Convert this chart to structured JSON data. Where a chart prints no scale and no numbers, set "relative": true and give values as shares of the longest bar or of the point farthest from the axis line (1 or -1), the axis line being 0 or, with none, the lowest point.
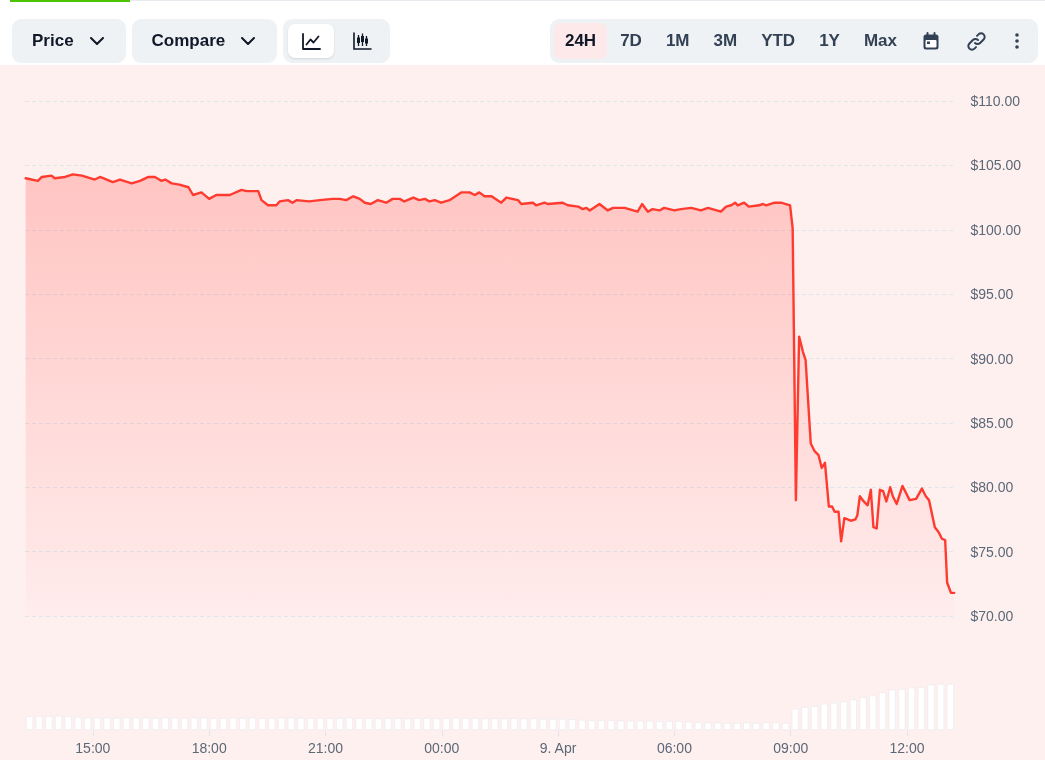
{
  "chart_data": [
    {
      "type": "area",
      "color": "#ff3b30",
      "line_style": "solid",
      "marker": "none",
      "grid": "y",
      "tick_labels": "y",
      "annotations": [
        "Price",
        "Compare",
        "24H",
        "7D",
        "1M",
        "3M",
        "YTD",
        "1Y",
        "Max"
      ],
      "xlim": [
        "--04-08T13:15",
        "--04-09T13:15"
      ],
      "ylim": [
        70,
        110
      ],
      "yticks": [
        {
          "value": 70,
          "label": "$70.00"
        },
        {
          "value": 75,
          "label": "$75.00"
        },
        {
          "value": 80,
          "label": "$80.00"
        },
        {
          "value": 85,
          "label": "$85.00"
        },
        {
          "value": 90,
          "label": "$90.00"
        },
        {
          "value": 95,
          "label": "$95.00"
        },
        {
          "value": 100,
          "label": "$100.00"
        },
        {
          "value": 105,
          "label": "$105.00"
        },
        {
          "value": 110,
          "label": "$110.00"
        }
      ],
      "x": [
        "--04-08T13:16",
        "--04-08T13:35",
        "--04-08T13:41",
        "--04-08T13:56",
        "--04-08T14:01",
        "--04-08T14:17",
        "--04-08T14:29",
        "--04-08T14:43",
        "--04-08T15:03",
        "--04-08T15:11",
        "--04-08T15:31",
        "--04-08T15:42",
        "--04-08T16:00",
        "--04-08T16:13",
        "--04-08T16:26",
        "--04-08T16:36",
        "--04-08T16:46",
        "--04-08T16:52",
        "--04-08T17:02",
        "--04-08T17:14",
        "--04-08T17:28",
        "--04-08T17:35",
        "--04-08T17:48",
        "--04-08T18:00",
        "--04-08T18:11",
        "--04-08T18:32",
        "--04-08T18:50",
        "--04-08T18:58",
        "--04-08T19:16",
        "--04-08T19:21",
        "--04-08T19:31",
        "--04-08T19:44",
        "--04-08T19:49",
        "--04-08T20:02",
        "--04-08T20:09",
        "--04-08T20:15",
        "--04-08T20:35",
        "--04-08T20:51",
        "--04-08T21:11",
        "--04-08T21:22",
        "--04-08T21:32",
        "--04-08T21:43",
        "--04-08T21:53",
        "--04-08T22:01",
        "--04-08T22:10",
        "--04-08T22:21",
        "--04-08T22:34",
        "--04-08T22:44",
        "--04-08T22:55",
        "--04-08T23:02",
        "--04-08T23:16",
        "--04-08T23:25",
        "--04-08T23:34",
        "--04-08T23:41",
        "--04-08T23:49",
        "--04-08T23:59",
        "--04-09T00:12",
        "--04-09T00:30",
        "--04-09T00:43",
        "--04-09T00:51",
        "--04-09T00:58",
        "--04-09T01:06",
        "--04-09T01:17",
        "--04-09T01:32",
        "--04-09T01:40",
        "--04-09T01:58",
        "--04-09T02:03",
        "--04-09T02:21",
        "--04-09T02:26",
        "--04-09T02:39",
        "--04-09T02:44",
        "--04-09T03:07",
        "--04-09T03:15",
        "--04-09T03:31",
        "--04-09T03:38",
        "--04-09T03:44",
        "--04-09T03:49",
        "--04-09T04:04",
        "--04-09T04:17",
        "--04-09T04:25",
        "--04-09T04:43",
        "--04-09T05:03",
        "--04-09T05:10",
        "--04-09T05:19",
        "--04-09T05:26",
        "--04-09T05:37",
        "--04-09T05:44",
        "--04-09T06:00",
        "--04-09T06:10",
        "--04-09T06:26",
        "--04-09T06:41",
        "--04-09T06:52",
        "--04-09T07:12",
        "--04-09T07:20",
        "--04-09T07:28",
        "--04-09T07:34",
        "--04-09T07:38",
        "--04-09T07:48",
        "--04-09T07:55",
        "--04-09T08:11",
        "--04-09T08:17",
        "--04-09T08:22",
        "--04-09T08:35",
        "--04-09T08:45",
        "--04-09T08:59",
        "--04-09T09:03",
        "--04-09T09:08",
        "--04-09T09:13",
        "--04-09T09:19",
        "--04-09T09:23",
        "--04-09T09:31",
        "--04-09T09:37",
        "--04-09T09:43",
        "--04-09T09:48",
        "--04-09T09:53",
        "--04-09T09:59",
        "--04-09T10:04",
        "--04-09T10:08",
        "--04-09T10:14",
        "--04-09T10:18",
        "--04-09T10:23",
        "--04-09T10:33",
        "--04-09T10:40",
        "--04-09T10:43",
        "--04-09T10:47",
        "--04-09T10:53",
        "--04-09T10:59",
        "--04-09T11:04",
        "--04-09T11:08",
        "--04-09T11:13",
        "--04-09T11:18",
        "--04-09T11:23",
        "--04-09T11:28",
        "--04-09T11:34",
        "--04-09T11:38",
        "--04-09T11:44",
        "--04-09T11:53",
        "--04-09T12:04",
        "--04-09T12:14",
        "--04-09T12:23",
        "--04-09T12:29",
        "--04-09T12:34",
        "--04-09T12:43",
        "--04-09T12:49",
        "--04-09T12:54",
        "--04-09T12:59",
        "--04-09T13:02",
        "--04-09T13:08",
        "--04-09T13:13"
      ],
      "values": [
        104.0,
        103.8,
        104.1,
        104.2,
        104.0,
        104.1,
        104.3,
        104.2,
        103.9,
        104.1,
        103.7,
        103.9,
        103.6,
        103.8,
        104.1,
        104.1,
        103.8,
        103.9,
        103.6,
        103.5,
        103.3,
        102.7,
        102.9,
        102.4,
        102.7,
        102.7,
        103.1,
        103.0,
        103.0,
        102.3,
        101.9,
        101.9,
        102.2,
        102.3,
        102.1,
        102.3,
        102.2,
        102.3,
        102.4,
        102.4,
        102.3,
        102.6,
        102.4,
        102.1,
        102.0,
        102.3,
        102.1,
        102.4,
        102.4,
        102.2,
        102.5,
        102.3,
        102.4,
        102.2,
        102.3,
        102.1,
        102.3,
        102.9,
        102.9,
        102.7,
        102.9,
        102.6,
        102.6,
        102.1,
        102.5,
        102.3,
        102.0,
        102.1,
        101.9,
        102.1,
        102.0,
        102.1,
        101.9,
        101.8,
        101.6,
        101.7,
        101.5,
        102.0,
        101.5,
        101.7,
        101.7,
        101.4,
        102.0,
        101.4,
        101.6,
        101.5,
        101.7,
        101.5,
        101.6,
        101.7,
        101.5,
        101.7,
        101.4,
        101.8,
        101.9,
        102.1,
        101.9,
        102.1,
        101.8,
        101.9,
        102.0,
        101.9,
        102.1,
        102.1,
        101.9,
        100.1,
        79.0,
        91.7,
        90.5,
        89.9,
        83.4,
        82.8,
        82.5,
        81.5,
        81.9,
        78.5,
        78.5,
        78.1,
        78.1,
        75.8,
        77.6,
        77.4,
        77.5,
        77.8,
        79.3,
        78.9,
        78.6,
        79.8,
        76.9,
        76.8,
        79.8,
        79.7,
        78.9,
        80.0,
        79.3,
        78.7,
        80.1,
        79.0,
        79.1,
        79.9,
        79.3,
        79.0,
        76.9,
        76.5,
        76.0,
        75.9,
        72.6,
        71.8,
        71.8
      ]
    },
    {
      "type": "bar",
      "color": "#ffffff",
      "relative": true,
      "xlim": [
        "--04-08T13:15",
        "--04-09T13:15"
      ],
      "xticks": [
        {
          "value": "--04-08T15:00",
          "label": "15:00"
        },
        {
          "value": "--04-08T18:00",
          "label": "18:00"
        },
        {
          "value": "--04-08T21:00",
          "label": "21:00"
        },
        {
          "value": "--04-09T00:00",
          "label": "00:00"
        },
        {
          "value": "--04-09T03:00",
          "label": "9. Apr"
        },
        {
          "value": "--04-09T06:00",
          "label": "06:00"
        },
        {
          "value": "--04-09T09:00",
          "label": "09:00"
        },
        {
          "value": "--04-09T12:00",
          "label": "12:00"
        }
      ],
      "x": [
        "--04-08T13:22",
        "--04-08T13:37",
        "--04-08T13:52",
        "--04-08T14:07",
        "--04-08T14:22",
        "--04-08T14:37",
        "--04-08T14:52",
        "--04-08T15:07",
        "--04-08T15:22",
        "--04-08T15:37",
        "--04-08T15:52",
        "--04-08T16:07",
        "--04-08T16:22",
        "--04-08T16:37",
        "--04-08T16:52",
        "--04-08T17:07",
        "--04-08T17:22",
        "--04-08T17:37",
        "--04-08T17:52",
        "--04-08T18:07",
        "--04-08T18:22",
        "--04-08T18:37",
        "--04-08T18:52",
        "--04-08T19:07",
        "--04-08T19:22",
        "--04-08T19:37",
        "--04-08T19:52",
        "--04-08T20:07",
        "--04-08T20:22",
        "--04-08T20:37",
        "--04-08T20:52",
        "--04-08T21:07",
        "--04-08T21:22",
        "--04-08T21:37",
        "--04-08T21:52",
        "--04-08T22:07",
        "--04-08T22:22",
        "--04-08T22:37",
        "--04-08T22:52",
        "--04-08T23:07",
        "--04-08T23:22",
        "--04-08T23:37",
        "--04-08T23:52",
        "--04-09T00:07",
        "--04-09T00:22",
        "--04-09T00:37",
        "--04-09T00:52",
        "--04-09T01:07",
        "--04-09T01:22",
        "--04-09T01:37",
        "--04-09T01:52",
        "--04-09T02:07",
        "--04-09T02:22",
        "--04-09T02:37",
        "--04-09T02:52",
        "--04-09T03:07",
        "--04-09T03:22",
        "--04-09T03:37",
        "--04-09T03:52",
        "--04-09T04:07",
        "--04-09T04:22",
        "--04-09T04:37",
        "--04-09T04:52",
        "--04-09T05:07",
        "--04-09T05:22",
        "--04-09T05:37",
        "--04-09T05:52",
        "--04-09T06:07",
        "--04-09T06:22",
        "--04-09T06:37",
        "--04-09T06:52",
        "--04-09T07:07",
        "--04-09T07:22",
        "--04-09T07:37",
        "--04-09T07:52",
        "--04-09T08:07",
        "--04-09T08:22",
        "--04-09T08:37",
        "--04-09T08:52",
        "--04-09T09:07",
        "--04-09T09:22",
        "--04-09T09:37",
        "--04-09T09:52",
        "--04-09T10:07",
        "--04-09T10:22",
        "--04-09T10:37",
        "--04-09T10:52",
        "--04-09T11:07",
        "--04-09T11:22",
        "--04-09T11:37",
        "--04-09T11:52",
        "--04-09T12:07",
        "--04-09T12:22",
        "--04-09T12:37",
        "--04-09T12:52",
        "--04-09T13:07"
      ],
      "values": [
        0.3,
        0.3,
        0.3,
        0.31,
        0.3,
        0.28,
        0.27,
        0.27,
        0.27,
        0.26,
        0.27,
        0.27,
        0.27,
        0.26,
        0.27,
        0.27,
        0.26,
        0.27,
        0.27,
        0.26,
        0.26,
        0.27,
        0.26,
        0.27,
        0.26,
        0.26,
        0.27,
        0.27,
        0.26,
        0.26,
        0.26,
        0.26,
        0.26,
        0.27,
        0.26,
        0.26,
        0.25,
        0.26,
        0.26,
        0.25,
        0.26,
        0.26,
        0.25,
        0.26,
        0.27,
        0.26,
        0.26,
        0.25,
        0.25,
        0.25,
        0.26,
        0.25,
        0.25,
        0.24,
        0.24,
        0.24,
        0.23,
        0.22,
        0.21,
        0.21,
        0.21,
        0.2,
        0.2,
        0.2,
        0.2,
        0.19,
        0.19,
        0.19,
        0.18,
        0.17,
        0.16,
        0.16,
        0.15,
        0.15,
        0.16,
        0.15,
        0.16,
        0.16,
        0.15,
        0.46,
        0.5,
        0.52,
        0.57,
        0.59,
        0.62,
        0.66,
        0.71,
        0.75,
        0.82,
        0.88,
        0.89,
        0.92,
        0.93,
        0.99,
        1,
        1
      ]
    }
  ]
}
